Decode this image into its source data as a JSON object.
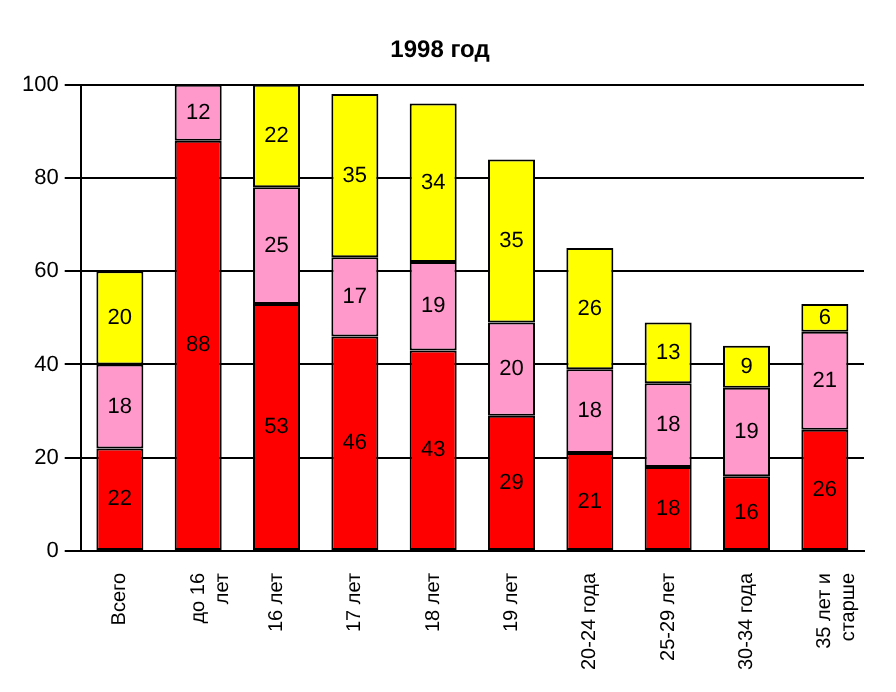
{
  "chart_data": {
    "type": "bar",
    "title": "1998 год",
    "stacked": true,
    "data_labels": true,
    "grid": "y",
    "legend": false,
    "categories": [
      "Всего",
      "до 16 лет",
      "16 лет",
      "17 лет",
      "18 лет",
      "19 лет",
      "20-24 года",
      "25-29 лет",
      "30-34 года",
      "35 лет и старше"
    ],
    "series": [
      {
        "color": "#ff0000",
        "values": [
          22,
          88,
          53,
          46,
          43,
          29,
          21,
          18,
          16,
          26
        ]
      },
      {
        "color": "#ff99cc",
        "values": [
          18,
          12,
          25,
          17,
          19,
          20,
          18,
          18,
          19,
          21
        ]
      },
      {
        "color": "#ffff00",
        "values": [
          20,
          null,
          22,
          35,
          34,
          35,
          26,
          13,
          9,
          6
        ]
      }
    ],
    "ylim": [
      0,
      100
    ],
    "yticks": [
      0,
      20,
      40,
      60,
      80,
      100
    ]
  }
}
